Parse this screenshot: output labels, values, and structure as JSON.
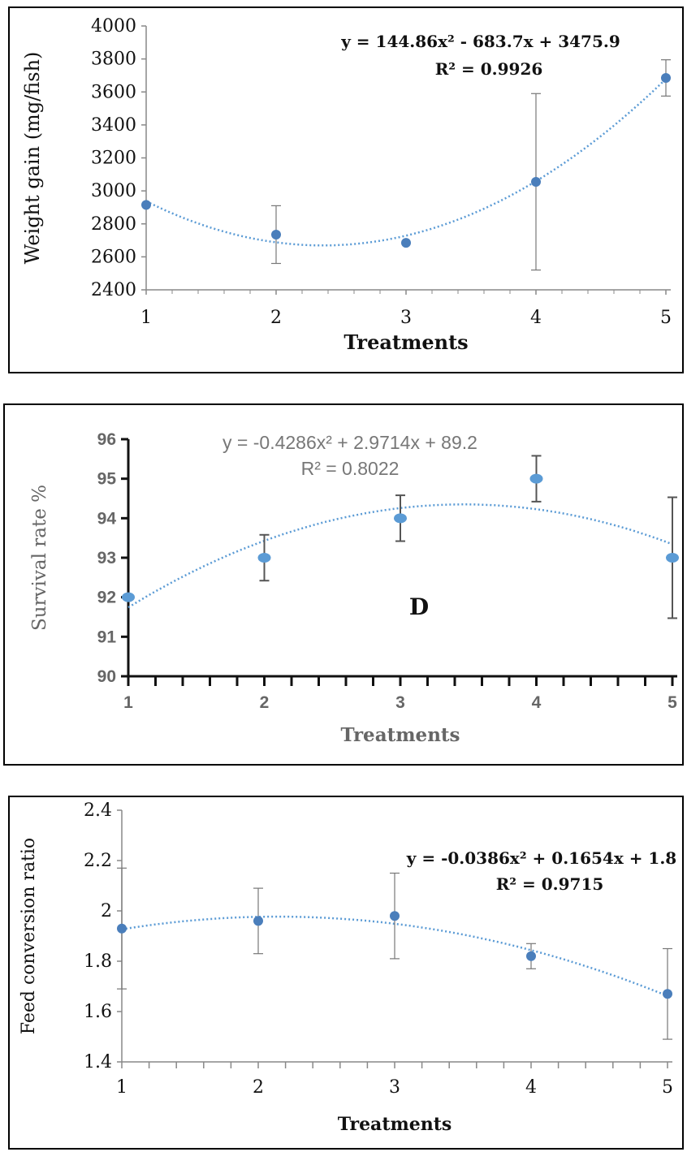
{
  "chart_data": [
    {
      "type": "scatter",
      "xlabel": "Treatments",
      "ylabel": "Weight gain (mg/fish)",
      "ylim": [
        2400,
        4000
      ],
      "xlim": [
        1,
        5
      ],
      "yticks": [
        2400,
        2600,
        2800,
        3000,
        3200,
        3400,
        3600,
        3800,
        4000
      ],
      "xticks": [
        1,
        2,
        3,
        4,
        5
      ],
      "points": [
        {
          "x": 1,
          "y": 2915,
          "err": 0
        },
        {
          "x": 2,
          "y": 2735,
          "err": 175
        },
        {
          "x": 3,
          "y": 2685,
          "err": 0
        },
        {
          "x": 4,
          "y": 3055,
          "err": 535
        },
        {
          "x": 5,
          "y": 3685,
          "err": 110
        }
      ],
      "trendline": {
        "type": "polynomial",
        "coefficients": [
          144.86,
          -683.7,
          3475.9
        ]
      },
      "equation": "y = 144.86x² - 683.7x + 3475.9",
      "r_squared": "R² = 0.9926",
      "annotation": "",
      "colors": {
        "marker": "#4a7ebb",
        "trend": "#5b9bd5",
        "error": "#777777"
      }
    },
    {
      "type": "scatter",
      "xlabel": "Treatments",
      "ylabel": "Survival rate %",
      "ylim": [
        90,
        96
      ],
      "xlim": [
        1,
        5
      ],
      "yticks": [
        90,
        91,
        92,
        93,
        94,
        95,
        96
      ],
      "xticks": [
        1,
        2,
        3,
        4,
        5
      ],
      "points": [
        {
          "x": 1,
          "y": 92,
          "err": 0
        },
        {
          "x": 2,
          "y": 93,
          "err": 0.58
        },
        {
          "x": 3,
          "y": 94,
          "err": 0.58
        },
        {
          "x": 4,
          "y": 95,
          "err": 0.58
        },
        {
          "x": 5,
          "y": 93,
          "err": 1.53
        }
      ],
      "trendline": {
        "type": "polynomial",
        "coefficients": [
          -0.4286,
          2.9714,
          89.2
        ]
      },
      "equation": "y = -0.4286x² + 2.9714x + 89.2",
      "r_squared": "R² = 0.8022",
      "annotation": "D",
      "colors": {
        "marker": "#5b9bd5",
        "trend": "#5b9bd5",
        "error": "#555555"
      }
    },
    {
      "type": "scatter",
      "xlabel": "Treatments",
      "ylabel": "Feed conversion ratio",
      "ylim": [
        1.4,
        2.4
      ],
      "xlim": [
        1,
        5
      ],
      "yticks": [
        "1.4",
        "1.6",
        "1.8",
        "2",
        "2.2",
        "2.4"
      ],
      "xticks": [
        1,
        2,
        3,
        4,
        5
      ],
      "points": [
        {
          "x": 1,
          "y": 1.93,
          "err": 0.24
        },
        {
          "x": 2,
          "y": 1.96,
          "err": 0.13
        },
        {
          "x": 3,
          "y": 1.98,
          "err": 0.17
        },
        {
          "x": 4,
          "y": 1.82,
          "err": 0.05
        },
        {
          "x": 5,
          "y": 1.67,
          "err": 0.18
        }
      ],
      "trendline": {
        "type": "polynomial",
        "coefficients": [
          -0.0386,
          0.1654,
          1.8
        ]
      },
      "equation": "y = -0.0386x² + 0.1654x + 1.8",
      "r_squared": "R² = 0.9715",
      "annotation": "",
      "colors": {
        "marker": "#4a7ebb",
        "trend": "#5b9bd5",
        "error": "#777777"
      }
    }
  ]
}
